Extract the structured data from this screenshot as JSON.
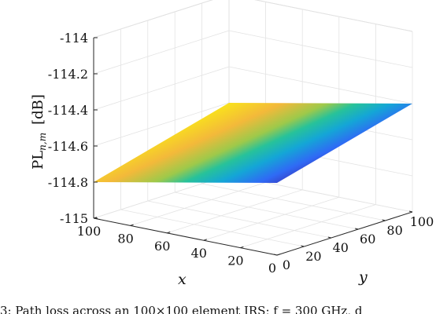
{
  "chart_data": {
    "type": "surface",
    "title": "",
    "zlabel": "PL",
    "zlabel_sub": "n,m",
    "zlabel_unit": "[dB]",
    "xlabel": "x",
    "ylabel": "y",
    "x_ticks": [
      "0",
      "20",
      "40",
      "60",
      "80",
      "100"
    ],
    "y_ticks": [
      "0",
      "20",
      "40",
      "60",
      "80",
      "100"
    ],
    "z_ticks": [
      "-114",
      "-114.2",
      "-114.4",
      "-114.6",
      "-114.8",
      "-115"
    ],
    "xlim": [
      0,
      100
    ],
    "ylim": [
      0,
      100
    ],
    "zlim": [
      -115,
      -114
    ],
    "grid": true,
    "colormap": "parula",
    "colors": [
      "#3e26a8",
      "#2f6af5",
      "#14a6d6",
      "#27c29a",
      "#9ec94a",
      "#f3b93a",
      "#f9e21c"
    ],
    "surface": {
      "corner_values": {
        "x0_y0": -114.6,
        "x100_y0": -114.8,
        "x0_y100": -114.4,
        "x100_y100": -114.6
      },
      "z_min": -114.8,
      "z_max": -114.4
    }
  },
  "caption": "3: Path loss across an 100×100 element IRS; f = 300 GHz, d"
}
